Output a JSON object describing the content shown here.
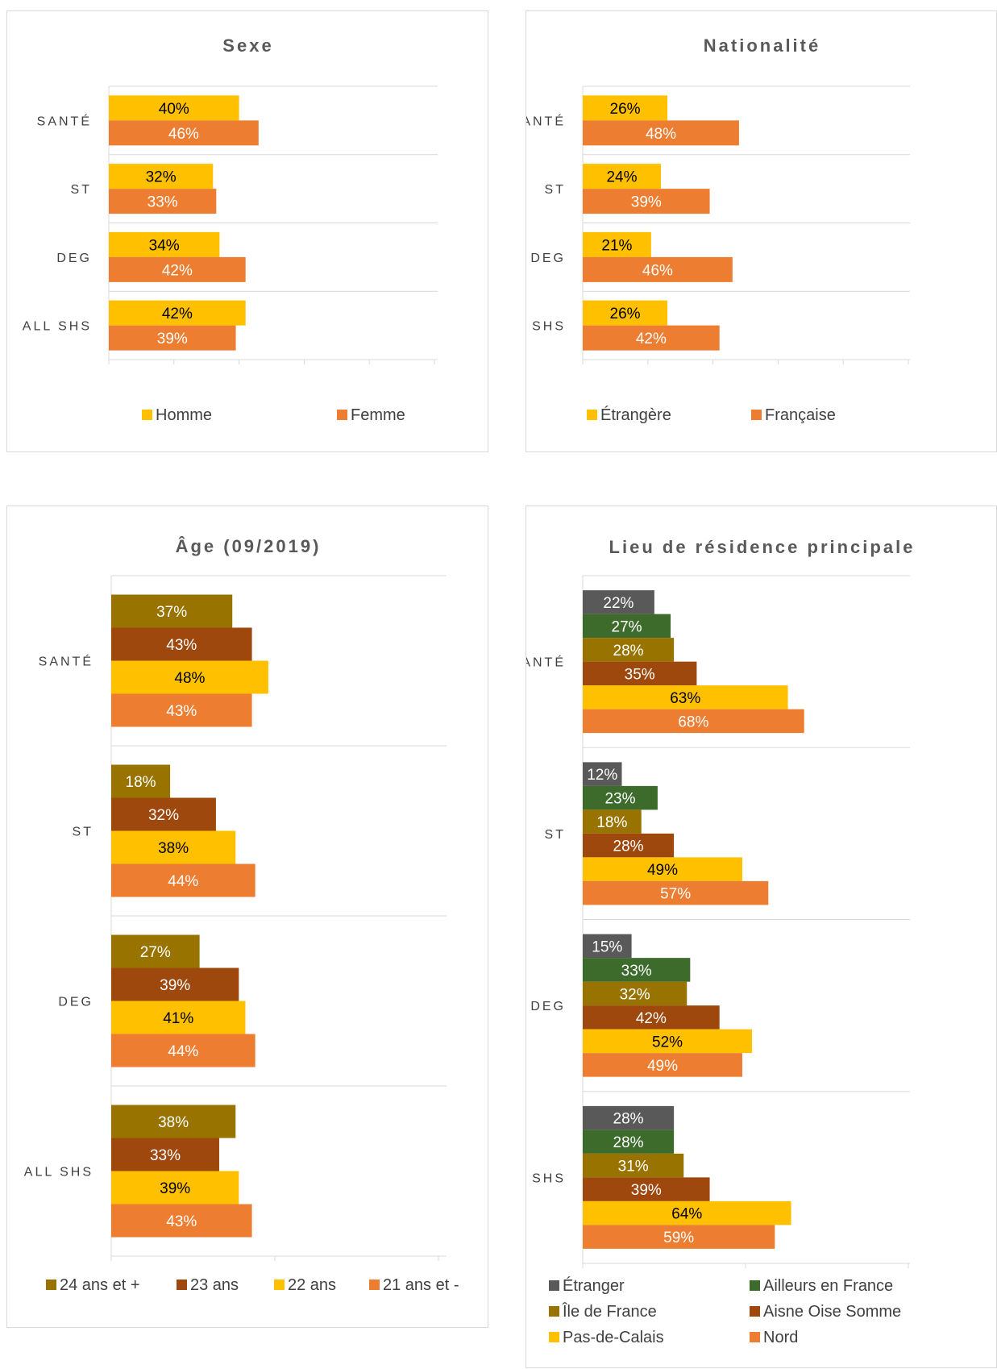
{
  "colors": {
    "orange": "#ED7D31",
    "gold": "#FFC000",
    "rust": "#9E480E",
    "olive": "#997300",
    "green": "#3D6B2C",
    "gray": "#595959",
    "grid": "#d9d9d9"
  },
  "chart_data": [
    {
      "type": "bar",
      "orientation": "horizontal",
      "title": "Sexe",
      "categories": [
        "SANTÉ",
        "ST",
        "DEG",
        "ALL SHS"
      ],
      "series": [
        {
          "name": "Homme",
          "color": "#FFC000",
          "label_color": "#000000",
          "values": [
            40,
            32,
            34,
            42
          ],
          "labels": [
            "40%",
            "32%",
            "34%",
            "42%"
          ]
        },
        {
          "name": "Femme",
          "color": "#ED7D31",
          "label_color": "#ffffff",
          "values": [
            46,
            33,
            42,
            39
          ],
          "labels": [
            "46%",
            "33%",
            "42%",
            "39%"
          ]
        }
      ],
      "xlim": [
        0,
        100
      ],
      "grid": true,
      "legend": "bottom"
    },
    {
      "type": "bar",
      "orientation": "horizontal",
      "title": "Nationalité",
      "categories": [
        "SANTÉ",
        "ST",
        "DEG",
        "ALL SHS"
      ],
      "series": [
        {
          "name": "Étrangère",
          "color": "#FFC000",
          "label_color": "#000000",
          "values": [
            26,
            24,
            21,
            26
          ],
          "labels": [
            "26%",
            "24%",
            "21%",
            "26%"
          ]
        },
        {
          "name": "Française",
          "color": "#ED7D31",
          "label_color": "#ffffff",
          "values": [
            48,
            39,
            46,
            42
          ],
          "labels": [
            "48%",
            "39%",
            "46%",
            "42%"
          ]
        }
      ],
      "xlim": [
        0,
        100
      ],
      "grid": true,
      "legend": "bottom"
    },
    {
      "type": "bar",
      "orientation": "horizontal",
      "title": "Âge (09/2019)",
      "categories": [
        "SANTÉ",
        "ST",
        "DEG",
        "ALL SHS"
      ],
      "series": [
        {
          "name": "24 ans et +",
          "color": "#997300",
          "label_color": "#ffffff",
          "values": [
            37,
            18,
            27,
            38
          ],
          "labels": [
            "37%",
            "18%",
            "27%",
            "38%"
          ]
        },
        {
          "name": "23 ans",
          "color": "#9E480E",
          "label_color": "#ffffff",
          "values": [
            43,
            32,
            39,
            33
          ],
          "labels": [
            "43%",
            "32%",
            "39%",
            "33%"
          ]
        },
        {
          "name": "22 ans",
          "color": "#FFC000",
          "label_color": "#000000",
          "values": [
            48,
            38,
            41,
            39
          ],
          "labels": [
            "48%",
            "38%",
            "41%",
            "39%"
          ]
        },
        {
          "name": "21 ans et -",
          "color": "#ED7D31",
          "label_color": "#ffffff",
          "values": [
            43,
            44,
            44,
            43
          ],
          "labels": [
            "43%",
            "44%",
            "44%",
            "43%"
          ]
        }
      ],
      "xlim": [
        0,
        100
      ],
      "grid": true,
      "legend": "bottom"
    },
    {
      "type": "bar",
      "orientation": "horizontal",
      "title": "Lieu de résidence principale",
      "categories": [
        "SANTÉ",
        "ST",
        "DEG",
        "ALL SHS"
      ],
      "series": [
        {
          "name": "Étranger",
          "color": "#595959",
          "label_color": "#ffffff",
          "values": [
            22,
            12,
            15,
            28
          ],
          "labels": [
            "22%",
            "12%",
            "15%",
            "28%"
          ]
        },
        {
          "name": "Ailleurs en France",
          "color": "#3D6B2C",
          "label_color": "#ffffff",
          "values": [
            27,
            23,
            33,
            28
          ],
          "labels": [
            "27%",
            "23%",
            "33%",
            "28%"
          ]
        },
        {
          "name": "Île de France",
          "color": "#997300",
          "label_color": "#ffffff",
          "values": [
            28,
            18,
            32,
            31
          ],
          "labels": [
            "28%",
            "18%",
            "32%",
            "31%"
          ]
        },
        {
          "name": "Aisne Oise Somme",
          "color": "#9E480E",
          "label_color": "#ffffff",
          "values": [
            35,
            28,
            42,
            39
          ],
          "labels": [
            "35%",
            "28%",
            "42%",
            "39%"
          ]
        },
        {
          "name": "Pas-de-Calais",
          "color": "#FFC000",
          "label_color": "#000000",
          "values": [
            63,
            49,
            52,
            64
          ],
          "labels": [
            "63%",
            "49%",
            "52%",
            "64%"
          ]
        },
        {
          "name": "Nord",
          "color": "#ED7D31",
          "label_color": "#ffffff",
          "values": [
            68,
            57,
            49,
            59
          ],
          "labels": [
            "68%",
            "57%",
            "49%",
            "59%"
          ]
        }
      ],
      "xlim": [
        0,
        100
      ],
      "grid": true,
      "legend": "bottom"
    }
  ]
}
